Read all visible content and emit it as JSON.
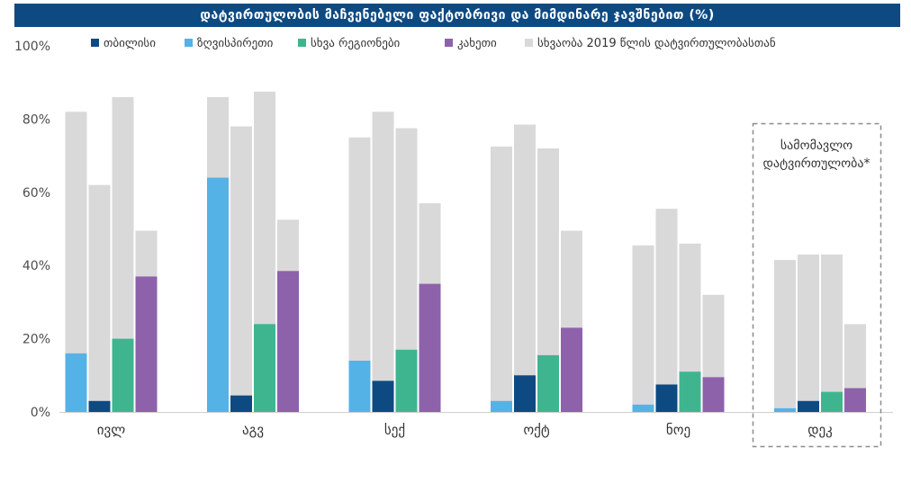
{
  "chart_data": {
    "type": "bar",
    "title": "დატვირთულობის მაჩვენებელი ფაქტობრივი და მიმდინარე ჯავშნებით (%)",
    "categories": [
      "ივლ",
      "აგვ",
      "სექ",
      "ოქტ",
      "ნოე",
      "დეკ"
    ],
    "series": [
      {
        "name": "ზღვისპირეთი",
        "color": "#55b2e6",
        "values": [
          16,
          64,
          14,
          3,
          2,
          1
        ]
      },
      {
        "name": "თბილისი",
        "color": "#0e4a82",
        "values": [
          3,
          4.5,
          8.5,
          10,
          7.5,
          3
        ]
      },
      {
        "name": "სხვა რეგიონები",
        "color": "#3fb58f",
        "values": [
          20,
          24,
          17,
          15.5,
          11,
          5.5
        ]
      },
      {
        "name": "კახეთი",
        "color": "#8d62ab",
        "values": [
          37,
          38.5,
          35,
          23,
          9.5,
          6.5
        ]
      }
    ],
    "comparison": {
      "name": "სხვაობა 2019 წლის დატვირთულობასთან",
      "color": "#d9d9d9",
      "totals": [
        [
          82,
          62,
          86,
          49.5
        ],
        [
          86,
          78,
          87.5,
          52.5
        ],
        [
          75,
          82,
          77.5,
          57
        ],
        [
          72.5,
          78.5,
          72,
          49.5
        ],
        [
          45.5,
          55.5,
          46,
          32
        ],
        [
          41.5,
          43,
          43,
          24
        ]
      ]
    },
    "legend_order": [
      "თბილისი",
      "ზღვისპირეთი",
      "სხვა რეგიონები",
      "კახეთი",
      "სხვაობა 2019 წლის დატვირთულობასთან"
    ],
    "legend_position": "top",
    "ylim": [
      0,
      100
    ],
    "yticks": [
      "0%",
      "20%",
      "40%",
      "60%",
      "80%",
      "100%"
    ],
    "annotation": {
      "line1": "სამომავლო",
      "line2": "დატვირთულობა*",
      "category": "დეკ"
    },
    "grid": false
  }
}
